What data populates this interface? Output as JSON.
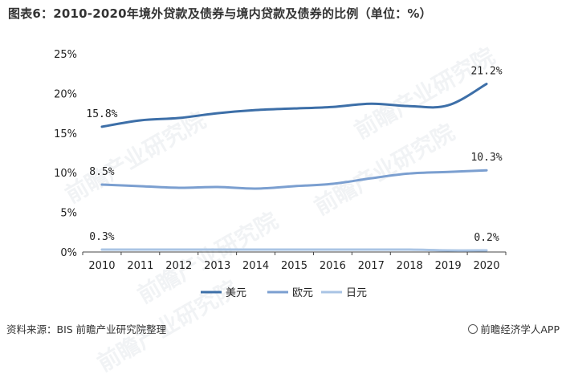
{
  "title": "图表6：2010-2020年境外贷款及债券与境内贷款及债券的比例（单位：%）",
  "footer": {
    "source": "资料来源：BIS 前瞻产业研究院整理",
    "brand": "前瞻经济学人APP"
  },
  "watermark": "前瞻产业研究院",
  "chart_data": {
    "type": "line",
    "title": "图表6：2010-2020年境外贷款及债券与境内贷款及债券的比例（单位：%）",
    "xlabel": "",
    "ylabel": "",
    "x": [
      "2010",
      "2011",
      "2012",
      "2013",
      "2014",
      "2015",
      "2016",
      "2017",
      "2018",
      "2019",
      "2020"
    ],
    "ylim": [
      0,
      25
    ],
    "yticks": [
      "0%",
      "5%",
      "10%",
      "15%",
      "20%",
      "25%"
    ],
    "grid": false,
    "legend": "bottom",
    "series": [
      {
        "name": "美元",
        "color": "#3d6fa8",
        "values": [
          15.8,
          16.6,
          16.9,
          17.5,
          17.9,
          18.1,
          18.3,
          18.7,
          18.4,
          18.5,
          21.2
        ],
        "labels": {
          "0": "15.8%",
          "10": "21.2%"
        }
      },
      {
        "name": "欧元",
        "color": "#7b9fd0",
        "values": [
          8.5,
          8.3,
          8.1,
          8.2,
          8.0,
          8.3,
          8.6,
          9.3,
          9.9,
          10.1,
          10.3
        ],
        "labels": {
          "0": "8.5%",
          "10": "10.3%"
        }
      },
      {
        "name": "日元",
        "color": "#a9c4e4",
        "values": [
          0.3,
          0.3,
          0.3,
          0.3,
          0.3,
          0.3,
          0.3,
          0.3,
          0.3,
          0.2,
          0.2
        ],
        "labels": {
          "0": "0.3%",
          "10": "0.2%"
        }
      }
    ]
  }
}
